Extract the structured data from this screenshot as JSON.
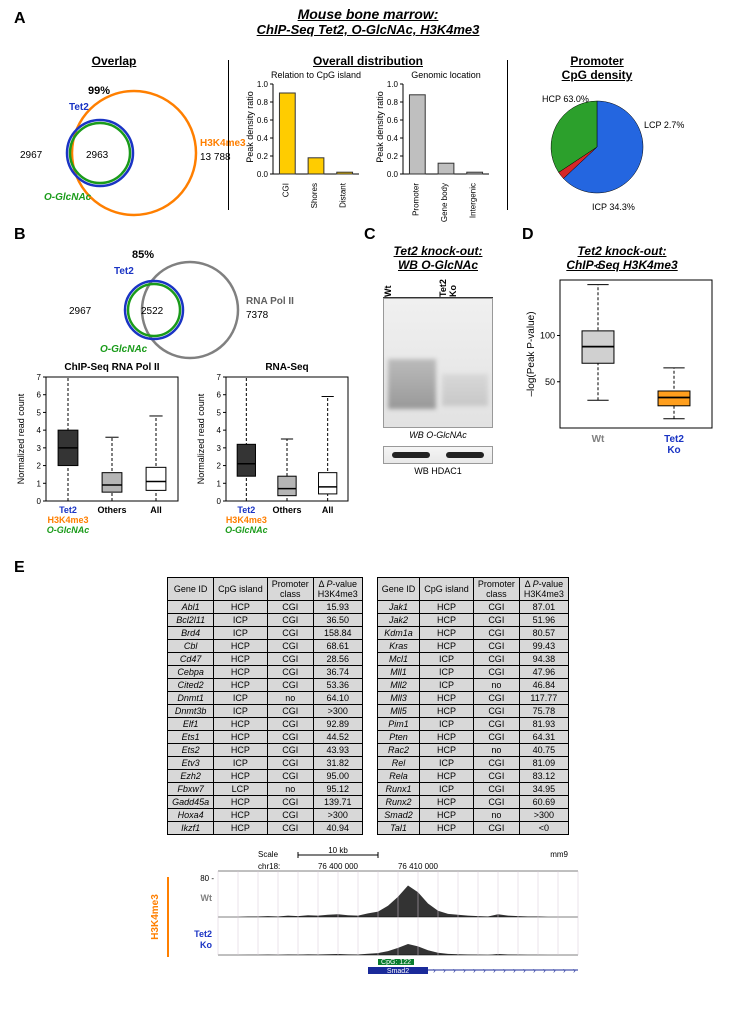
{
  "title_line1": "Mouse bone marrow:",
  "title_line2": "ChIP-Seq Tet2, O-GlcNAc, H3K4me3",
  "panelA": {
    "label": "A",
    "overlap_heading": "Overlap",
    "venn": {
      "tet2_label": "Tet2",
      "tet2_color": "#1a34c4",
      "oglcnac_label": "O-GlcNAc",
      "oglcnac_color": "#1a9b1a",
      "h3k4_label": "H3K4me3",
      "h3k4_color": "#ff7f00",
      "left_count": "2967",
      "inner_count": "2963",
      "right_label": "H3K4me3",
      "right_count": "13 788",
      "pct": "99%"
    },
    "overall_heading": "Overall distribution",
    "cgi_chart": {
      "subtitle": "Relation to CpG island",
      "ylabel": "Peak density ratio",
      "categories": [
        "CGI",
        "Shores",
        "Distant"
      ],
      "values": [
        0.9,
        0.18,
        0.02
      ],
      "ylim": [
        0,
        1
      ],
      "ytick_step": 0.2,
      "bar_color": "#ffcc00",
      "bar_edge": "#333"
    },
    "loc_chart": {
      "subtitle": "Genomic location",
      "ylabel": "Peak density ratio",
      "categories": [
        "Promoter",
        "Gene body",
        "Intergenic"
      ],
      "values": [
        0.88,
        0.12,
        0.02
      ],
      "ylim": [
        0,
        1
      ],
      "ytick_step": 0.2,
      "bar_color": "#bfbfbf",
      "bar_edge": "#333"
    },
    "pie_heading": "Promoter\nCpG density",
    "pie": {
      "slices": [
        {
          "label": "HCP 63.0%",
          "value": 63.0,
          "color": "#2466e0"
        },
        {
          "label": "LCP 2.7%",
          "value": 2.7,
          "color": "#d62728"
        },
        {
          "label": "ICP 34.3%",
          "value": 34.3,
          "color": "#2ca02c"
        }
      ]
    }
  },
  "panelB": {
    "label": "B",
    "venn": {
      "tet2_label": "Tet2",
      "tet2_color": "#1a34c4",
      "oglcnac_label": "O-GlcNAc",
      "oglcnac_color": "#1a9b1a",
      "polii_label": "RNA Pol II",
      "polii_color": "#808080",
      "pct": "85%",
      "left_count": "2967",
      "inner_count": "2522",
      "right_count": "7378"
    },
    "box_polii": {
      "title": "ChIP-Seq RNA Pol II",
      "ylabel": "Normalized read count",
      "ylim": [
        0,
        7
      ],
      "ytick_step": 1,
      "categories": [
        "Tet2",
        "Others",
        "All"
      ],
      "boxes": [
        {
          "q1": 2.0,
          "med": 3.0,
          "q3": 4.0,
          "lo": 0,
          "hi": 7.0,
          "fill": "#343434"
        },
        {
          "q1": 0.5,
          "med": 0.9,
          "q3": 1.6,
          "lo": 0,
          "hi": 3.6,
          "fill": "#b5b5b5"
        },
        {
          "q1": 0.6,
          "med": 1.1,
          "q3": 1.9,
          "lo": 0,
          "hi": 4.8,
          "fill": "#ffffff"
        }
      ],
      "sub_labels": [
        "H3K4me3",
        "O-GlcNAc"
      ],
      "sub_colors": [
        "#ff7f00",
        "#1a9b1a"
      ]
    },
    "box_rna": {
      "title": "RNA-Seq",
      "ylabel": "Normalized read count",
      "ylim": [
        0,
        7
      ],
      "ytick_step": 1,
      "categories": [
        "Tet2",
        "Others",
        "All"
      ],
      "boxes": [
        {
          "q1": 1.4,
          "med": 2.1,
          "q3": 3.2,
          "lo": 0,
          "hi": 7.0,
          "fill": "#343434"
        },
        {
          "q1": 0.3,
          "med": 0.7,
          "q3": 1.4,
          "lo": 0,
          "hi": 3.5,
          "fill": "#b5b5b5"
        },
        {
          "q1": 0.4,
          "med": 0.8,
          "q3": 1.6,
          "lo": 0,
          "hi": 5.9,
          "fill": "#ffffff"
        }
      ]
    }
  },
  "panelC": {
    "label": "C",
    "title": "Tet2 knock-out:",
    "subtitle": "WB O-GlcNAc",
    "lane1": "Wt",
    "lane2": "Tet2 Ko",
    "wb1": "WB O-GlcNAc",
    "wb2": "WB HDAC1"
  },
  "panelD": {
    "label": "D",
    "title": "Tet2 knock-out:",
    "subtitle": "ChIP-Seq H3K4me3",
    "ylabel": "–log(Peak P-value)",
    "ylim": [
      0,
      160
    ],
    "yticks": [
      50,
      100
    ],
    "categories": [
      "Wt",
      "Tet2\nKo"
    ],
    "boxes": [
      {
        "q1": 70,
        "med": 88,
        "q3": 105,
        "lo": 30,
        "hi": 155,
        "fill": "#d0d0d0"
      },
      {
        "q1": 24,
        "med": 33,
        "q3": 40,
        "lo": 10,
        "hi": 65,
        "fill": "#ff9f1e"
      }
    ],
    "cat_colors": [
      "#808080",
      "#1a34c4"
    ]
  },
  "panelE": {
    "label": "E",
    "cols": [
      "Gene ID",
      "CpG island",
      "Promoter class",
      "Δ P-value H3K4me3"
    ],
    "left": [
      [
        "Abl1",
        "HCP",
        "CGI",
        "15.93"
      ],
      [
        "Bcl2l11",
        "ICP",
        "CGI",
        "36.50"
      ],
      [
        "Brd4",
        "ICP",
        "CGI",
        "158.84"
      ],
      [
        "Cbl",
        "HCP",
        "CGI",
        "68.61"
      ],
      [
        "Cd47",
        "HCP",
        "CGI",
        "28.56"
      ],
      [
        "Cebpa",
        "HCP",
        "CGI",
        "36.74"
      ],
      [
        "Cited2",
        "HCP",
        "CGI",
        "53.36"
      ],
      [
        "Dnmt1",
        "ICP",
        "no",
        "64.10"
      ],
      [
        "Dnmt3b",
        "ICP",
        "CGI",
        ">300"
      ],
      [
        "Elf1",
        "HCP",
        "CGI",
        "92.89"
      ],
      [
        "Ets1",
        "HCP",
        "CGI",
        "44.52"
      ],
      [
        "Ets2",
        "HCP",
        "CGI",
        "43.93"
      ],
      [
        "Etv3",
        "ICP",
        "CGI",
        "31.82"
      ],
      [
        "Ezh2",
        "HCP",
        "CGI",
        "95.00"
      ],
      [
        "Fbxw7",
        "LCP",
        "no",
        "95.12"
      ],
      [
        "Gadd45a",
        "HCP",
        "CGI",
        "139.71"
      ],
      [
        "Hoxa4",
        "HCP",
        "CGI",
        ">300"
      ],
      [
        "Ikzf1",
        "HCP",
        "CGI",
        "40.94"
      ]
    ],
    "right": [
      [
        "Jak1",
        "HCP",
        "CGI",
        "87.01"
      ],
      [
        "Jak2",
        "HCP",
        "CGI",
        "51.96"
      ],
      [
        "Kdm1a",
        "HCP",
        "CGI",
        "80.57"
      ],
      [
        "Kras",
        "HCP",
        "CGI",
        "99.43"
      ],
      [
        "Mcl1",
        "ICP",
        "CGI",
        "94.38"
      ],
      [
        "Mll1",
        "ICP",
        "CGI",
        "47.96"
      ],
      [
        "Mll2",
        "ICP",
        "no",
        "46.84"
      ],
      [
        "Mll3",
        "HCP",
        "CGI",
        "117.77"
      ],
      [
        "Mll5",
        "HCP",
        "CGI",
        "75.78"
      ],
      [
        "Pim1",
        "ICP",
        "CGI",
        "81.93"
      ],
      [
        "Pten",
        "HCP",
        "CGI",
        "64.31"
      ],
      [
        "Rac2",
        "HCP",
        "no",
        "40.75"
      ],
      [
        "Rel",
        "ICP",
        "CGI",
        "81.09"
      ],
      [
        "Rela",
        "HCP",
        "CGI",
        "83.12"
      ],
      [
        "Runx1",
        "ICP",
        "CGI",
        "34.95"
      ],
      [
        "Runx2",
        "HCP",
        "CGI",
        "60.69"
      ],
      [
        "Smad2",
        "HCP",
        "no",
        ">300"
      ],
      [
        "Tal1",
        "HCP",
        "CGI",
        "<0"
      ]
    ],
    "browser": {
      "scale": "Scale",
      "kb": "10 kb",
      "asm": "mm9",
      "chr": "chr18:",
      "c1": "76 400 000",
      "c2": "76 410 000",
      "yscale": "80 -",
      "wt": "Wt",
      "ko": "Tet2\nKo",
      "side": "H3K4me3",
      "gene": "Smad2",
      "cpg": "CpG: 122",
      "side_color": "#ff7f00",
      "wt_color": "#808080",
      "ko_color": "#1a34c4"
    }
  }
}
